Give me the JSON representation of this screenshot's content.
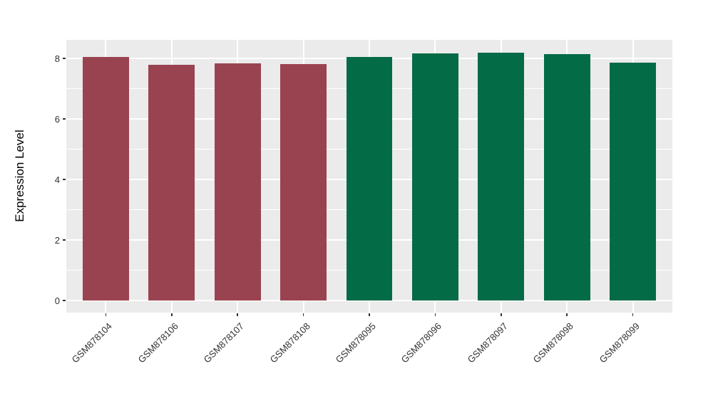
{
  "figure": {
    "background": "#FFFFFF"
  },
  "chart_data": {
    "type": "bar",
    "title": "",
    "xlabel": "",
    "ylabel": "Expression Level",
    "categories": [
      "GSM878104",
      "GSM878106",
      "GSM878107",
      "GSM878108",
      "GSM878095",
      "GSM878096",
      "GSM878097",
      "GSM878098",
      "GSM878099"
    ],
    "values": [
      8.05,
      7.8,
      7.84,
      7.82,
      8.05,
      8.18,
      8.2,
      8.16,
      7.87
    ],
    "bar_groups": [
      "group1",
      "group1",
      "group1",
      "group1",
      "group2",
      "group2",
      "group2",
      "group2",
      "group2"
    ],
    "group_colors": {
      "group1": "#9A4350",
      "group2": "#046B47"
    },
    "yticks": [
      0,
      2,
      4,
      6,
      8
    ],
    "minor_yticks": [
      1,
      3,
      5,
      7
    ],
    "ylim": [
      -0.4,
      8.62
    ],
    "bar_rel_width": 0.7,
    "legend_position": "none",
    "grid": "on",
    "panel_bg": "#EBEBEB",
    "grid_color": "#FFFFFF",
    "tick_mark_color": "#333333",
    "tick_label_color": "#303030"
  }
}
